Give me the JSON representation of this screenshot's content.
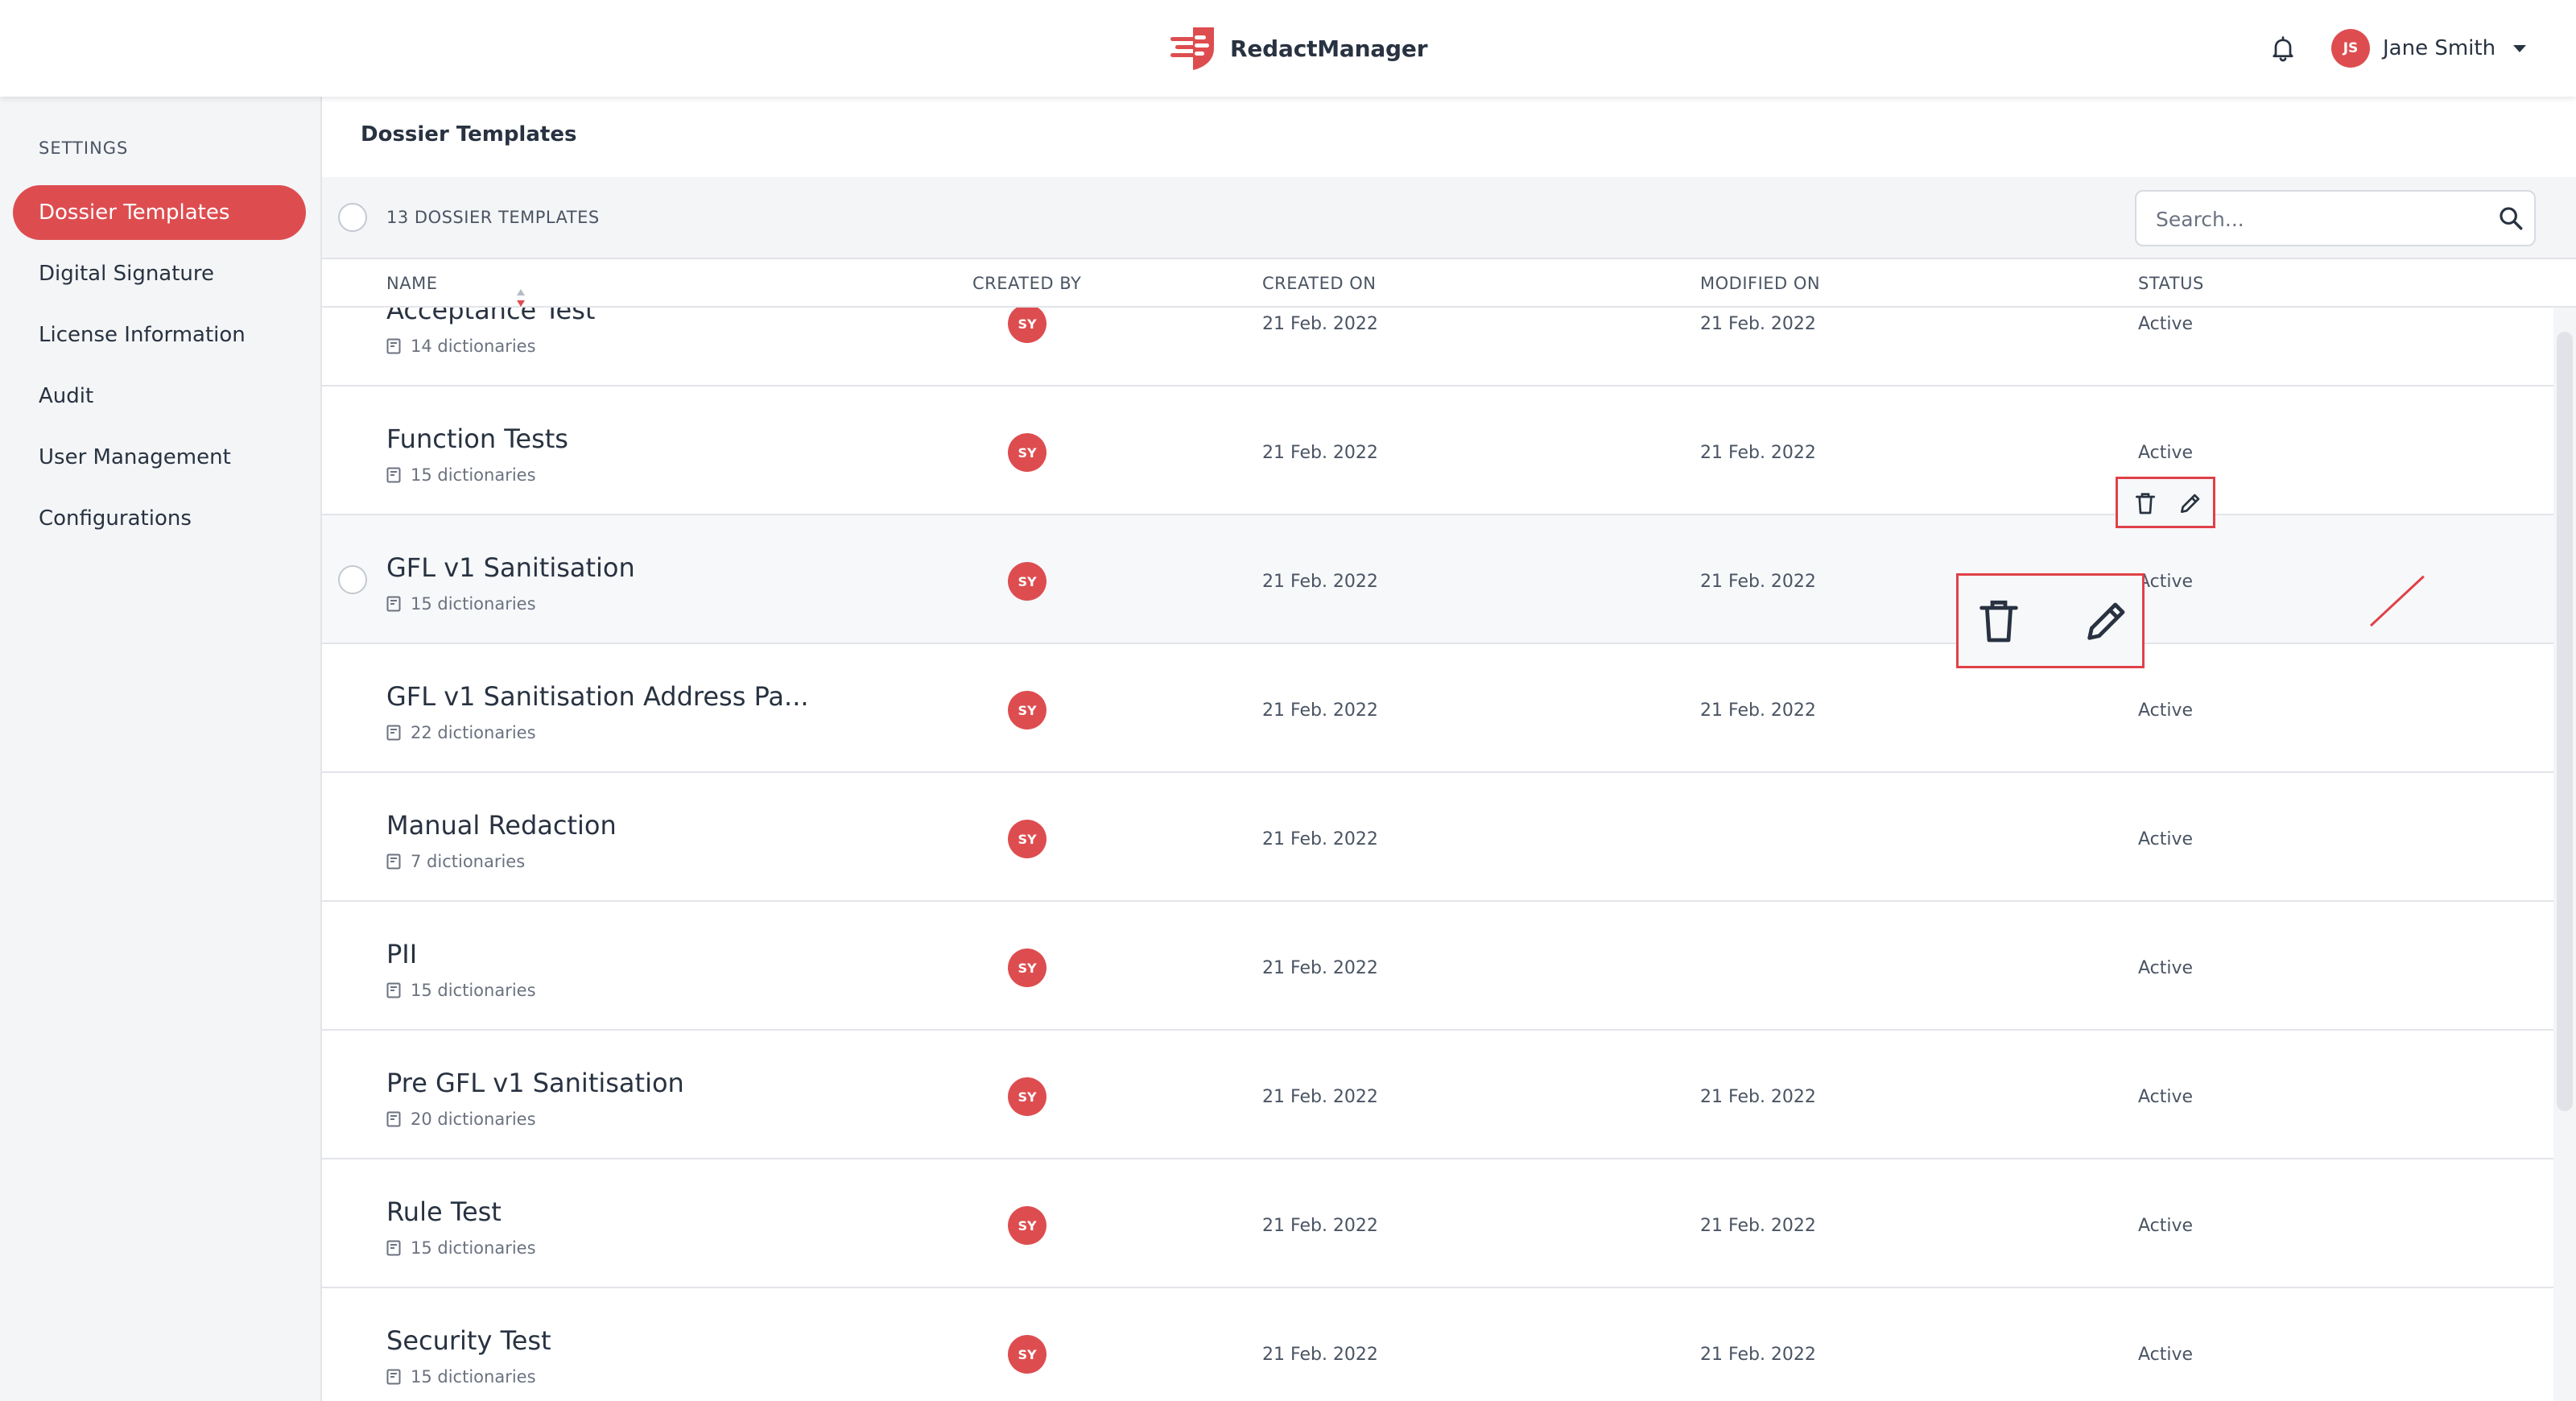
{
  "app": {
    "brand": "RedactManager"
  },
  "user": {
    "initials": "JS",
    "name": "Jane Smith"
  },
  "sidebar": {
    "heading": "SETTINGS",
    "items": [
      {
        "label": "Dossier Templates",
        "active": true
      },
      {
        "label": "Digital Signature"
      },
      {
        "label": "License Information"
      },
      {
        "label": "Audit"
      },
      {
        "label": "User Management"
      },
      {
        "label": "Configurations"
      }
    ]
  },
  "main": {
    "title": "Dossier Templates",
    "count_label": "13 DOSSIER TEMPLATES",
    "search": {
      "placeholder": "Search..."
    },
    "columns": {
      "name": "NAME",
      "created_by": "CREATED BY",
      "created_on": "CREATED ON",
      "modified_on": "MODIFIED ON",
      "status": "STATUS"
    },
    "rows": [
      {
        "name": "Acceptance Test",
        "dictionaries": "14 dictionaries",
        "created_by": "SY",
        "created_on": "21 Feb. 2022",
        "modified_on": "21 Feb. 2022",
        "status": "Active"
      },
      {
        "name": "Function Tests",
        "dictionaries": "15 dictionaries",
        "created_by": "SY",
        "created_on": "21 Feb. 2022",
        "modified_on": "21 Feb. 2022",
        "status": "Active"
      },
      {
        "name": "GFL v1 Sanitisation",
        "dictionaries": "15 dictionaries",
        "created_by": "SY",
        "created_on": "21 Feb. 2022",
        "modified_on": "21 Feb. 2022",
        "status": "Active"
      },
      {
        "name": "GFL v1 Sanitisation Address Pa...",
        "dictionaries": "22 dictionaries",
        "created_by": "SY",
        "created_on": "21 Feb. 2022",
        "modified_on": "21 Feb. 2022",
        "status": "Active"
      },
      {
        "name": "Manual Redaction",
        "dictionaries": "7 dictionaries",
        "created_by": "SY",
        "created_on": "21 Feb. 2022",
        "modified_on": "",
        "status": "Active"
      },
      {
        "name": "PII",
        "dictionaries": "15 dictionaries",
        "created_by": "SY",
        "created_on": "21 Feb. 2022",
        "modified_on": "",
        "status": "Active"
      },
      {
        "name": "Pre GFL v1 Sanitisation",
        "dictionaries": "20 dictionaries",
        "created_by": "SY",
        "created_on": "21 Feb. 2022",
        "modified_on": "21 Feb. 2022",
        "status": "Active"
      },
      {
        "name": "Rule Test",
        "dictionaries": "15 dictionaries",
        "created_by": "SY",
        "created_on": "21 Feb. 2022",
        "modified_on": "21 Feb. 2022",
        "status": "Active"
      },
      {
        "name": "Security Test",
        "dictionaries": "15 dictionaries",
        "created_by": "SY",
        "created_on": "21 Feb. 2022",
        "modified_on": "21 Feb. 2022",
        "status": "Active"
      }
    ],
    "hover_row_index": 2
  },
  "colors": {
    "accent": "#dd4d50",
    "text": "#283241",
    "highlight": "#e04148"
  },
  "icons": {
    "logo": "redact-logo-icon",
    "bell": "bell-icon",
    "search": "search-icon",
    "sort": "sort-icon",
    "delete": "trash-icon",
    "edit": "pencil-icon",
    "dictionary": "book-icon"
  }
}
